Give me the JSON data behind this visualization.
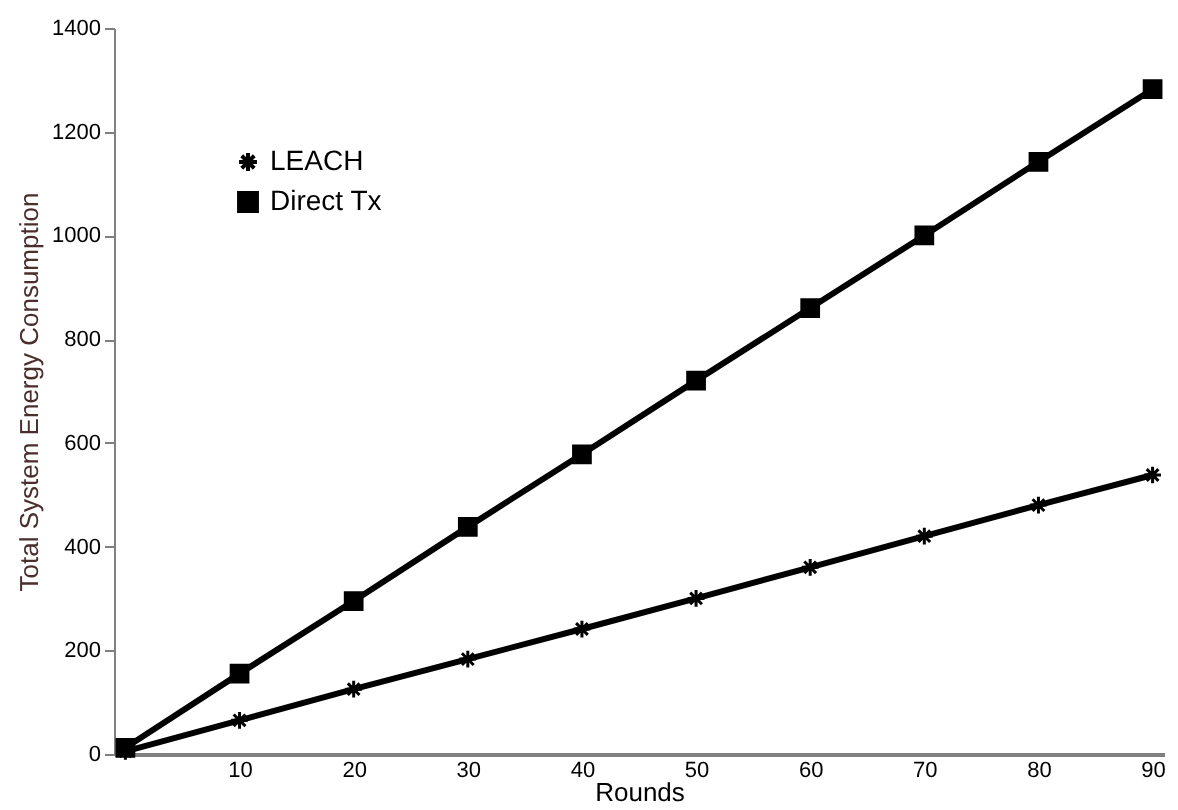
{
  "chart_data": {
    "type": "line",
    "xlabel": "Rounds",
    "ylabel": "Total System Energy Consumption",
    "categories": [
      null,
      "10",
      "20",
      "30",
      "40",
      "50",
      "60",
      "70",
      "80",
      "90"
    ],
    "series": [
      {
        "name": "LEACH",
        "color": "#000000",
        "marker": "cross",
        "values": [
          5,
          65,
          125,
          183,
          241,
          300,
          360,
          420,
          480,
          538
        ]
      },
      {
        "name": "Direct Tx",
        "color": "#000000",
        "marker": "square",
        "values": [
          12,
          155,
          295,
          438,
          578,
          720,
          860,
          1000,
          1142,
          1282
        ]
      }
    ],
    "ylim": [
      0,
      1400
    ],
    "yticks": [
      0,
      200,
      400,
      600,
      800,
      1000,
      1200,
      1400
    ],
    "grid": false,
    "legend": "top left",
    "line_style": "solid"
  }
}
